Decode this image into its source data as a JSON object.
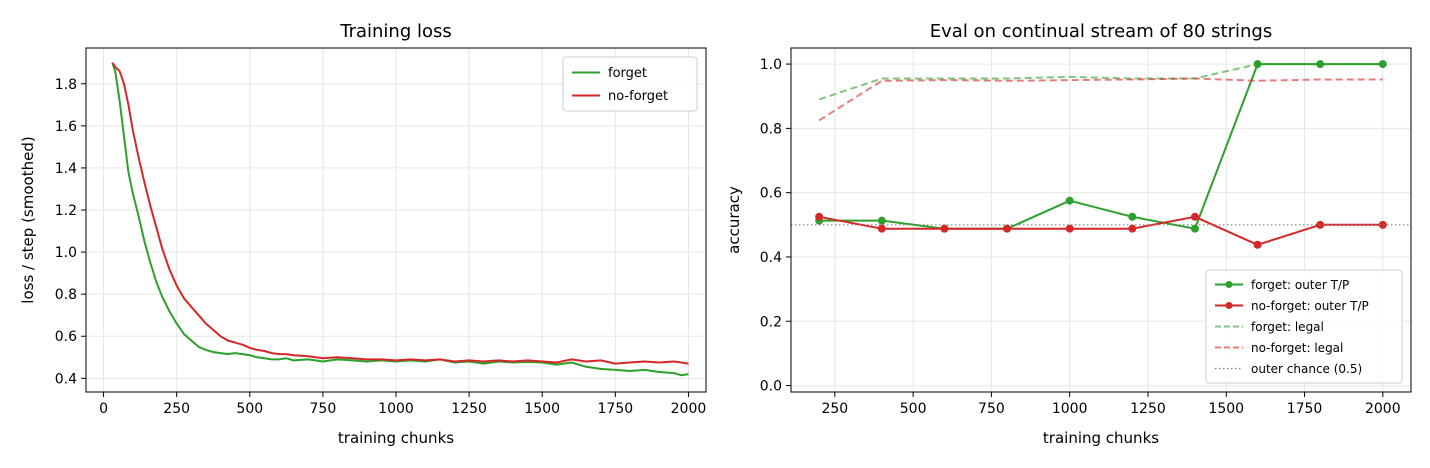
{
  "chart_data": [
    {
      "type": "line",
      "title": "Training loss",
      "xlabel": "training chunks",
      "ylabel": "loss / step (smoothed)",
      "xlim": [
        -60,
        2060
      ],
      "ylim": [
        0.335,
        1.97
      ],
      "xticks": [
        "0",
        "250",
        "500",
        "750",
        "1000",
        "1250",
        "1500",
        "1750",
        "2000"
      ],
      "yticks": [
        "0.4",
        "0.6",
        "0.8",
        "1.0",
        "1.2",
        "1.4",
        "1.6",
        "1.8"
      ],
      "grid": true,
      "legend_position": "top-right",
      "series": [
        {
          "name": "forget",
          "color": "#2ca02c",
          "x": [
            30,
            40,
            55,
            70,
            85,
            100,
            120,
            140,
            160,
            180,
            200,
            225,
            250,
            275,
            300,
            325,
            350,
            375,
            400,
            425,
            450,
            475,
            500,
            525,
            550,
            575,
            600,
            625,
            650,
            700,
            750,
            800,
            850,
            900,
            950,
            1000,
            1050,
            1100,
            1150,
            1200,
            1250,
            1300,
            1350,
            1400,
            1450,
            1500,
            1550,
            1600,
            1650,
            1700,
            1750,
            1800,
            1850,
            1900,
            1950,
            1975,
            2000
          ],
          "y": [
            1.9,
            1.86,
            1.72,
            1.55,
            1.38,
            1.28,
            1.17,
            1.05,
            0.95,
            0.86,
            0.79,
            0.72,
            0.66,
            0.61,
            0.58,
            0.55,
            0.535,
            0.525,
            0.52,
            0.515,
            0.52,
            0.515,
            0.51,
            0.5,
            0.495,
            0.49,
            0.49,
            0.495,
            0.485,
            0.49,
            0.48,
            0.49,
            0.485,
            0.48,
            0.485,
            0.48,
            0.485,
            0.48,
            0.49,
            0.475,
            0.48,
            0.47,
            0.48,
            0.475,
            0.478,
            0.475,
            0.465,
            0.475,
            0.455,
            0.445,
            0.44,
            0.435,
            0.44,
            0.43,
            0.425,
            0.415,
            0.42
          ]
        },
        {
          "name": "no-forget",
          "color": "#d62728",
          "x": [
            30,
            40,
            55,
            70,
            85,
            100,
            120,
            140,
            160,
            180,
            200,
            225,
            250,
            275,
            300,
            325,
            350,
            375,
            400,
            425,
            450,
            475,
            500,
            525,
            550,
            575,
            600,
            625,
            650,
            700,
            750,
            800,
            850,
            900,
            950,
            1000,
            1050,
            1100,
            1150,
            1200,
            1250,
            1300,
            1350,
            1400,
            1450,
            1500,
            1550,
            1600,
            1650,
            1700,
            1750,
            1800,
            1850,
            1900,
            1950,
            1975,
            2000
          ],
          "y": [
            1.9,
            1.88,
            1.86,
            1.8,
            1.7,
            1.58,
            1.45,
            1.33,
            1.22,
            1.12,
            1.02,
            0.92,
            0.84,
            0.78,
            0.74,
            0.7,
            0.66,
            0.63,
            0.6,
            0.58,
            0.57,
            0.56,
            0.545,
            0.535,
            0.53,
            0.52,
            0.515,
            0.515,
            0.51,
            0.505,
            0.495,
            0.5,
            0.495,
            0.49,
            0.49,
            0.485,
            0.49,
            0.485,
            0.49,
            0.48,
            0.485,
            0.48,
            0.485,
            0.48,
            0.485,
            0.48,
            0.475,
            0.49,
            0.48,
            0.485,
            0.47,
            0.475,
            0.48,
            0.475,
            0.48,
            0.475,
            0.47
          ]
        }
      ]
    },
    {
      "type": "line",
      "title": "Eval on continual stream of 80 strings",
      "xlabel": "training chunks",
      "ylabel": "accuracy",
      "xlim": [
        110,
        2090
      ],
      "ylim": [
        -0.02,
        1.05
      ],
      "xticks": [
        "250",
        "500",
        "750",
        "1000",
        "1250",
        "1500",
        "1750",
        "2000"
      ],
      "yticks": [
        "0.0",
        "0.2",
        "0.4",
        "0.6",
        "0.8",
        "1.0"
      ],
      "grid": true,
      "legend_position": "bottom-right",
      "series": [
        {
          "name": "forget: outer T/P",
          "color": "#2ca02c",
          "style": "solid-markers",
          "x": [
            200,
            400,
            600,
            800,
            1000,
            1200,
            1400,
            1600,
            1800,
            2000
          ],
          "y": [
            0.513,
            0.513,
            0.488,
            0.488,
            0.575,
            0.525,
            0.488,
            1.0,
            1.0,
            1.0
          ]
        },
        {
          "name": "no-forget: outer T/P",
          "color": "#d62728",
          "style": "solid-markers",
          "x": [
            200,
            400,
            600,
            800,
            1000,
            1200,
            1400,
            1600,
            1800,
            2000
          ],
          "y": [
            0.525,
            0.488,
            0.488,
            0.488,
            0.488,
            0.488,
            0.525,
            0.438,
            0.5,
            0.5
          ]
        },
        {
          "name": "forget: legal",
          "color": "#2ca02c",
          "style": "dashed",
          "x": [
            200,
            400,
            600,
            800,
            1000,
            1200,
            1400,
            1600,
            1800,
            2000
          ],
          "y": [
            0.89,
            0.955,
            0.955,
            0.955,
            0.96,
            0.955,
            0.955,
            1.0,
            1.0,
            1.0
          ]
        },
        {
          "name": "no-forget: legal",
          "color": "#d62728",
          "style": "dashed",
          "x": [
            200,
            400,
            600,
            800,
            1000,
            1200,
            1400,
            1600,
            1800,
            2000
          ],
          "y": [
            0.825,
            0.948,
            0.95,
            0.948,
            0.95,
            0.952,
            0.955,
            0.948,
            0.952,
            0.952
          ]
        },
        {
          "name": "outer chance (0.5)",
          "color": "#808080",
          "style": "dotted-hline",
          "y": 0.5
        }
      ]
    }
  ]
}
